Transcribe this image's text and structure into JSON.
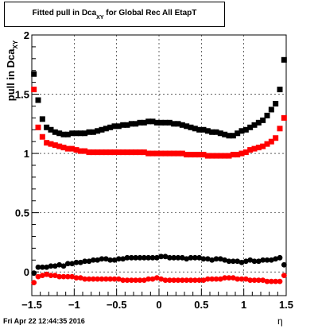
{
  "title": {
    "prefix": "Fitted pull in Dca",
    "sub": "XY",
    "suffix": " for Global Rec All EtapT"
  },
  "timestamp": "Fri Apr 22 12:44:35 2016",
  "chart_data": {
    "type": "scatter",
    "xlabel": "η",
    "ylabel_main": "pull in Dca",
    "ylabel_sub": "XY",
    "xlim": [
      -1.5,
      1.5
    ],
    "ylim": [
      -0.2,
      2.0
    ],
    "xticks": [
      -1.5,
      -1,
      -0.5,
      0,
      0.5,
      1,
      1.5
    ],
    "xtick_labels": [
      "−1.5",
      "−1",
      "−0.5",
      "0",
      "0.5",
      "1",
      "1.5"
    ],
    "yticks": [
      0,
      0.5,
      1,
      1.5,
      2
    ],
    "ytick_labels": [
      "0",
      "0.5",
      "1",
      "1.5",
      "2"
    ],
    "grid": true,
    "series": [
      {
        "color": "#000000",
        "marker": "square",
        "x": [
          -1.475,
          -1.425,
          -1.375,
          -1.325,
          -1.275,
          -1.225,
          -1.175,
          -1.125,
          -1.075,
          -1.025,
          -0.975,
          -0.925,
          -0.875,
          -0.825,
          -0.775,
          -0.725,
          -0.675,
          -0.625,
          -0.575,
          -0.525,
          -0.475,
          -0.425,
          -0.375,
          -0.325,
          -0.275,
          -0.225,
          -0.175,
          -0.125,
          -0.075,
          -0.025,
          0.025,
          0.075,
          0.125,
          0.175,
          0.225,
          0.275,
          0.325,
          0.375,
          0.425,
          0.475,
          0.525,
          0.575,
          0.625,
          0.675,
          0.725,
          0.775,
          0.825,
          0.875,
          0.925,
          0.975,
          1.025,
          1.075,
          1.125,
          1.175,
          1.225,
          1.275,
          1.325,
          1.375,
          1.425,
          1.475
        ],
        "y": [
          1.67,
          1.45,
          1.29,
          1.22,
          1.2,
          1.18,
          1.17,
          1.16,
          1.16,
          1.17,
          1.17,
          1.17,
          1.17,
          1.18,
          1.18,
          1.19,
          1.2,
          1.21,
          1.22,
          1.23,
          1.23,
          1.24,
          1.24,
          1.25,
          1.25,
          1.26,
          1.26,
          1.27,
          1.27,
          1.26,
          1.26,
          1.26,
          1.26,
          1.25,
          1.25,
          1.24,
          1.23,
          1.22,
          1.21,
          1.2,
          1.2,
          1.19,
          1.18,
          1.18,
          1.17,
          1.16,
          1.15,
          1.15,
          1.17,
          1.19,
          1.2,
          1.22,
          1.24,
          1.26,
          1.28,
          1.32,
          1.37,
          1.42,
          1.54,
          1.79
        ]
      },
      {
        "color": "#ff0000",
        "marker": "square",
        "x": [
          -1.475,
          -1.425,
          -1.375,
          -1.325,
          -1.275,
          -1.225,
          -1.175,
          -1.125,
          -1.075,
          -1.025,
          -0.975,
          -0.925,
          -0.875,
          -0.825,
          -0.775,
          -0.725,
          -0.675,
          -0.625,
          -0.575,
          -0.525,
          -0.475,
          -0.425,
          -0.375,
          -0.325,
          -0.275,
          -0.225,
          -0.175,
          -0.125,
          -0.075,
          -0.025,
          0.025,
          0.075,
          0.125,
          0.175,
          0.225,
          0.275,
          0.325,
          0.375,
          0.425,
          0.475,
          0.525,
          0.575,
          0.625,
          0.675,
          0.725,
          0.775,
          0.825,
          0.875,
          0.925,
          0.975,
          1.025,
          1.075,
          1.125,
          1.175,
          1.225,
          1.275,
          1.325,
          1.375,
          1.425,
          1.475
        ],
        "y": [
          1.54,
          1.22,
          1.14,
          1.09,
          1.08,
          1.07,
          1.06,
          1.05,
          1.04,
          1.04,
          1.03,
          1.02,
          1.02,
          1.01,
          1.01,
          1.01,
          1.01,
          1.01,
          1.01,
          1.01,
          1.01,
          1.01,
          1.01,
          1.01,
          1.01,
          1.01,
          1.01,
          1.0,
          1.0,
          1.0,
          1.0,
          1.0,
          1.0,
          1.0,
          1.0,
          1.0,
          0.99,
          0.99,
          0.99,
          0.99,
          0.99,
          0.98,
          0.98,
          0.98,
          0.98,
          0.98,
          0.98,
          0.99,
          0.99,
          1.0,
          1.01,
          1.03,
          1.04,
          1.05,
          1.06,
          1.08,
          1.1,
          1.13,
          1.21,
          1.3
        ]
      },
      {
        "color": "#000000",
        "marker": "circle",
        "x": [
          -1.475,
          -1.425,
          -1.375,
          -1.325,
          -1.275,
          -1.225,
          -1.175,
          -1.125,
          -1.075,
          -1.025,
          -0.975,
          -0.925,
          -0.875,
          -0.825,
          -0.775,
          -0.725,
          -0.675,
          -0.625,
          -0.575,
          -0.525,
          -0.475,
          -0.425,
          -0.375,
          -0.325,
          -0.275,
          -0.225,
          -0.175,
          -0.125,
          -0.075,
          -0.025,
          0.025,
          0.075,
          0.125,
          0.175,
          0.225,
          0.275,
          0.325,
          0.375,
          0.425,
          0.475,
          0.525,
          0.575,
          0.625,
          0.675,
          0.725,
          0.775,
          0.825,
          0.875,
          0.925,
          0.975,
          1.025,
          1.075,
          1.125,
          1.175,
          1.225,
          1.275,
          1.325,
          1.375,
          1.425,
          1.475
        ],
        "y": [
          -0.01,
          0.04,
          0.04,
          0.04,
          0.05,
          0.05,
          0.06,
          0.05,
          0.07,
          0.07,
          0.08,
          0.08,
          0.09,
          0.09,
          0.1,
          0.1,
          0.11,
          0.11,
          0.1,
          0.1,
          0.11,
          0.11,
          0.12,
          0.12,
          0.12,
          0.12,
          0.12,
          0.12,
          0.12,
          0.12,
          0.13,
          0.13,
          0.12,
          0.12,
          0.12,
          0.12,
          0.11,
          0.12,
          0.12,
          0.12,
          0.11,
          0.11,
          0.1,
          0.11,
          0.11,
          0.1,
          0.09,
          0.09,
          0.09,
          0.08,
          0.09,
          0.1,
          0.09,
          0.09,
          0.1,
          0.1,
          0.1,
          0.11,
          0.12,
          0.06
        ]
      },
      {
        "color": "#ff0000",
        "marker": "circle",
        "x": [
          -1.475,
          -1.425,
          -1.375,
          -1.325,
          -1.275,
          -1.225,
          -1.175,
          -1.125,
          -1.075,
          -1.025,
          -0.975,
          -0.925,
          -0.875,
          -0.825,
          -0.775,
          -0.725,
          -0.675,
          -0.625,
          -0.575,
          -0.525,
          -0.475,
          -0.425,
          -0.375,
          -0.325,
          -0.275,
          -0.225,
          -0.175,
          -0.125,
          -0.075,
          -0.025,
          0.025,
          0.075,
          0.125,
          0.175,
          0.225,
          0.275,
          0.325,
          0.375,
          0.425,
          0.475,
          0.525,
          0.575,
          0.625,
          0.675,
          0.725,
          0.775,
          0.825,
          0.875,
          0.925,
          0.975,
          1.025,
          1.075,
          1.125,
          1.175,
          1.225,
          1.275,
          1.325,
          1.375,
          1.425,
          1.475
        ],
        "y": [
          -0.09,
          -0.04,
          -0.03,
          -0.02,
          -0.03,
          -0.03,
          -0.04,
          -0.04,
          -0.04,
          -0.04,
          -0.05,
          -0.05,
          -0.06,
          -0.06,
          -0.06,
          -0.06,
          -0.06,
          -0.06,
          -0.06,
          -0.06,
          -0.06,
          -0.07,
          -0.07,
          -0.07,
          -0.07,
          -0.07,
          -0.07,
          -0.06,
          -0.06,
          -0.05,
          -0.06,
          -0.07,
          -0.07,
          -0.07,
          -0.07,
          -0.07,
          -0.07,
          -0.07,
          -0.07,
          -0.07,
          -0.07,
          -0.06,
          -0.06,
          -0.06,
          -0.06,
          -0.05,
          -0.05,
          -0.05,
          -0.06,
          -0.06,
          -0.06,
          -0.07,
          -0.07,
          -0.07,
          -0.07,
          -0.08,
          -0.08,
          -0.08,
          -0.08,
          -0.03
        ]
      }
    ]
  }
}
